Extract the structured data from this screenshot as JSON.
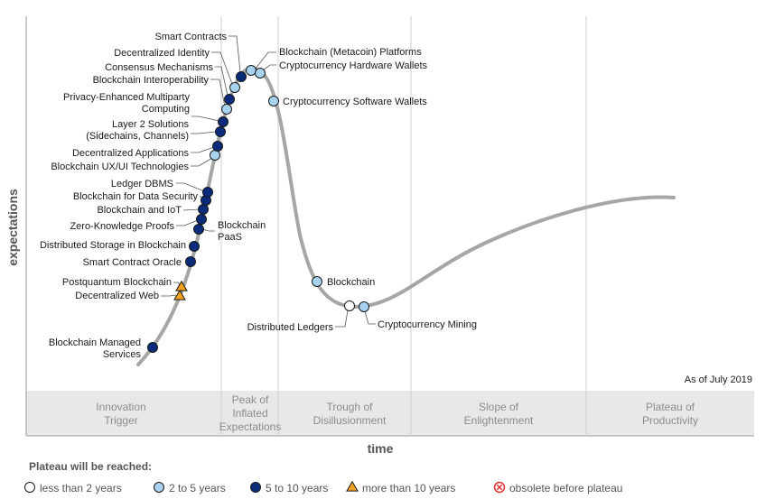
{
  "chart_data": {
    "type": "scatter",
    "title": "",
    "xlabel": "time",
    "ylabel": "expectations",
    "as_of": "As of July 2019",
    "phases": [
      {
        "name": "Innovation Trigger",
        "lines": [
          "Innovation",
          "Trigger"
        ]
      },
      {
        "name": "Peak of Inflated Expectations",
        "lines": [
          "Peak of",
          "Inflated",
          "Expectations"
        ]
      },
      {
        "name": "Trough of Disillusionment",
        "lines": [
          "Trough of",
          "Disillusionment"
        ]
      },
      {
        "name": "Slope of Enlightenment",
        "lines": [
          "Slope of",
          "Enlightenment"
        ]
      },
      {
        "name": "Plateau of Productivity",
        "lines": [
          "Plateau of",
          "Productivity"
        ]
      }
    ],
    "legend": {
      "title": "Plateau will be reached:",
      "placement": "bottom",
      "items": [
        {
          "key": "lt2",
          "label": "less than 2 years",
          "marker": "circle",
          "color": "#ffffff"
        },
        {
          "key": "2to5",
          "label": "2 to 5 years",
          "marker": "circle",
          "color": "#a8d3f0"
        },
        {
          "key": "5to10",
          "label": "5 to 10 years",
          "marker": "circle",
          "color": "#0a2a7a"
        },
        {
          "key": "gt10",
          "label": "more than 10 years",
          "marker": "triangle",
          "color": "#f0a020"
        },
        {
          "key": "obsolete",
          "label": "obsolete before plateau",
          "marker": "x-circle",
          "color": "#e03030"
        }
      ]
    },
    "points": [
      {
        "name": "Blockchain Managed Services",
        "lines": [
          "Blockchain Managed",
          "Services"
        ],
        "category": "5to10"
      },
      {
        "name": "Decentralized Web",
        "lines": [
          "Decentralized Web"
        ],
        "category": "gt10"
      },
      {
        "name": "Postquantum Blockchain",
        "lines": [
          "Postquantum Blockchain"
        ],
        "category": "gt10"
      },
      {
        "name": "Smart Contract Oracle",
        "lines": [
          "Smart Contract Oracle"
        ],
        "category": "5to10"
      },
      {
        "name": "Distributed Storage in Blockchain",
        "lines": [
          "Distributed Storage in Blockchain"
        ],
        "category": "5to10"
      },
      {
        "name": "Blockchain PaaS",
        "lines": [
          "Blockchain",
          "PaaS"
        ],
        "category": "5to10"
      },
      {
        "name": "Zero-Knowledge Proofs",
        "lines": [
          "Zero-Knowledge Proofs"
        ],
        "category": "5to10"
      },
      {
        "name": "Blockchain and IoT",
        "lines": [
          "Blockchain and IoT"
        ],
        "category": "5to10"
      },
      {
        "name": "Blockchain for Data Security",
        "lines": [
          "Blockchain for Data Security"
        ],
        "category": "5to10"
      },
      {
        "name": "Ledger DBMS",
        "lines": [
          "Ledger DBMS"
        ],
        "category": "5to10"
      },
      {
        "name": "Blockchain UX/UI Technologies",
        "lines": [
          "Blockchain UX/UI Technologies"
        ],
        "category": "2to5"
      },
      {
        "name": "Decentralized Applications",
        "lines": [
          "Decentralized Applications"
        ],
        "category": "5to10"
      },
      {
        "name": "Layer 2 Solutions (Sidechains, Channels)",
        "lines": [
          "Layer 2 Solutions",
          "(Sidechains, Channels)"
        ],
        "category": "5to10"
      },
      {
        "name": "Privacy-Enhanced Multiparty Computing",
        "lines": [
          "Privacy-Enhanced Multiparty",
          "Computing"
        ],
        "category": "5to10"
      },
      {
        "name": "Blockchain Interoperability",
        "lines": [
          "Blockchain Interoperability"
        ],
        "category": "2to5"
      },
      {
        "name": "Consensus Mechanisms",
        "lines": [
          "Consensus Mechanisms"
        ],
        "category": "5to10"
      },
      {
        "name": "Decentralized Identity",
        "lines": [
          "Decentralized Identity"
        ],
        "category": "2to5"
      },
      {
        "name": "Smart Contracts",
        "lines": [
          "Smart Contracts"
        ],
        "category": "5to10"
      },
      {
        "name": "Blockchain (Metacoin) Platforms",
        "lines": [
          "Blockchain (Metacoin) Platforms"
        ],
        "category": "2to5"
      },
      {
        "name": "Cryptocurrency Hardware Wallets",
        "lines": [
          "Cryptocurrency Hardware Wallets"
        ],
        "category": "2to5"
      },
      {
        "name": "Cryptocurrency Software Wallets",
        "lines": [
          "Cryptocurrency Software Wallets"
        ],
        "category": "2to5"
      },
      {
        "name": "Blockchain",
        "lines": [
          "Blockchain"
        ],
        "category": "2to5"
      },
      {
        "name": "Distributed Ledgers",
        "lines": [
          "Distributed Ledgers"
        ],
        "category": "lt2"
      },
      {
        "name": "Cryptocurrency Mining",
        "lines": [
          "Cryptocurrency Mining"
        ],
        "category": "2to5"
      }
    ]
  }
}
